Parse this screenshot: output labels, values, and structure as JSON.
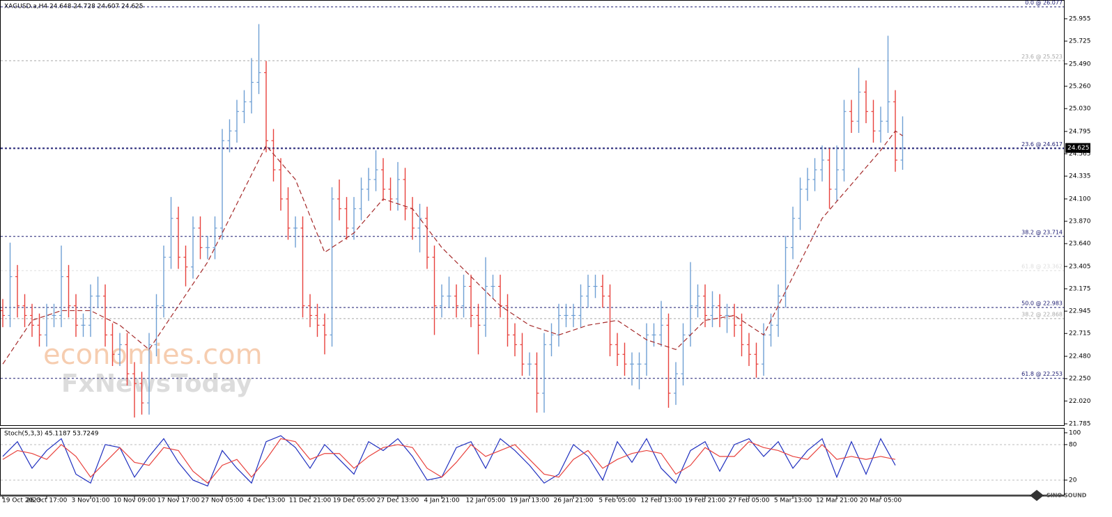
{
  "chart_data": {
    "type": "ohlc",
    "title": "XAGUSD.a,H4  24.648 24.728 24.607 24.625",
    "categories": [
      "19 Oct 2023",
      null,
      null,
      null,
      null,
      null,
      "26 Oct 17:00",
      null,
      null,
      null,
      null,
      null,
      "3 Nov 01:00",
      null,
      null,
      null,
      null,
      null,
      "10 Nov 09:00",
      null,
      null,
      null,
      null,
      null,
      "17 Nov 17:00",
      null,
      null,
      null,
      null,
      null,
      "27 Nov 05:00",
      null,
      null,
      null,
      null,
      null,
      "4 Dec 13:00",
      null,
      null,
      null,
      null,
      null,
      "11 Dec 21:00",
      null,
      null,
      null,
      null,
      null,
      "19 Dec 05:00",
      null,
      null,
      null,
      null,
      null,
      "27 Dec 13:00",
      null,
      null,
      null,
      null,
      null,
      "4 Jan 21:00",
      null,
      null,
      null,
      null,
      null,
      "12 Jan 05:00",
      null,
      null,
      null,
      null,
      null,
      "19 Jan 13:00",
      null,
      null,
      null,
      null,
      null,
      "26 Jan 21:00",
      null,
      null,
      null,
      null,
      null,
      "5 Feb 05:00",
      null,
      null,
      null,
      null,
      null,
      "12 Feb 13:00",
      null,
      null,
      null,
      null,
      null,
      "19 Feb 21:00",
      null,
      null,
      null,
      null,
      null,
      "27 Feb 05:00",
      null,
      null,
      null,
      null,
      null,
      "5 Mar 13:00",
      null,
      null,
      null,
      null,
      null,
      "12 Mar 21:00",
      null,
      null,
      null,
      null,
      null,
      "20 Mar 05:00",
      null,
      null,
      null
    ],
    "open": [
      22.95,
      22.9,
      23.3,
      23.0,
      22.9,
      22.8,
      22.7,
      22.9,
      22.9,
      23.3,
      23.0,
      22.8,
      22.8,
      23.1,
      23.1,
      22.7,
      22.5,
      22.6,
      22.3,
      22.2,
      22.0,
      22.6,
      23.0,
      23.5,
      23.9,
      23.5,
      23.4,
      23.8,
      23.6,
      23.6,
      23.8,
      24.7,
      24.8,
      25.0,
      25.1,
      25.3,
      25.4,
      24.7,
      24.4,
      24.1,
      23.8,
      23.8,
      23.0,
      22.9,
      22.8,
      22.7,
      24.1,
      24.0,
      23.8,
      24.0,
      24.2,
      24.3,
      24.4,
      24.2,
      24.1,
      24.3,
      24.0,
      23.8,
      23.9,
      23.5,
      23.0,
      23.1,
      23.1,
      23.0,
      23.2,
      22.9,
      22.8,
      23.2,
      23.2,
      23.0,
      22.7,
      22.6,
      22.4,
      22.4,
      22.1,
      22.6,
      22.7,
      22.9,
      22.9,
      22.9,
      23.1,
      23.2,
      23.2,
      23.1,
      22.6,
      22.5,
      22.4,
      22.4,
      22.4,
      22.7,
      22.7,
      22.8,
      22.1,
      22.3,
      22.7,
      23.0,
      23.1,
      22.9,
      23.0,
      22.9,
      22.9,
      22.8,
      22.6,
      22.5,
      22.4,
      22.7,
      22.8,
      23.1,
      23.6,
      23.9,
      24.2,
      24.3,
      24.4,
      24.5,
      24.2,
      24.4,
      25.0,
      24.9,
      25.2,
      25.0,
      24.8,
      24.9,
      25.1,
      24.5
    ],
    "high": [
      23.07,
      23.65,
      23.42,
      23.12,
      23.02,
      22.92,
      23.02,
      23.02,
      23.62,
      23.42,
      23.12,
      22.92,
      23.22,
      23.3,
      23.22,
      22.82,
      22.72,
      22.72,
      22.42,
      22.32,
      22.72,
      23.12,
      23.62,
      24.12,
      24.02,
      23.62,
      23.92,
      23.92,
      23.72,
      23.92,
      24.82,
      24.92,
      25.12,
      25.22,
      25.55,
      25.9,
      25.52,
      24.82,
      24.52,
      24.22,
      23.92,
      23.92,
      23.12,
      23.02,
      22.92,
      24.22,
      24.3,
      24.12,
      24.12,
      24.32,
      24.42,
      24.6,
      24.52,
      24.32,
      24.48,
      24.42,
      24.12,
      24.05,
      24.02,
      23.62,
      23.22,
      23.3,
      23.22,
      23.32,
      23.32,
      23.02,
      23.5,
      23.32,
      23.32,
      23.12,
      22.82,
      22.72,
      22.52,
      22.52,
      22.72,
      22.82,
      23.02,
      23.02,
      23.02,
      23.22,
      23.32,
      23.32,
      23.32,
      23.22,
      22.72,
      22.62,
      22.52,
      22.52,
      22.82,
      22.82,
      23.05,
      22.92,
      22.42,
      22.82,
      23.45,
      23.22,
      23.22,
      23.15,
      23.12,
      23.02,
      23.02,
      22.92,
      22.72,
      22.62,
      22.82,
      22.92,
      23.22,
      23.72,
      24.02,
      24.32,
      24.42,
      24.52,
      24.65,
      24.62,
      24.65,
      25.12,
      25.12,
      25.45,
      25.32,
      25.12,
      25.05,
      25.78,
      25.22,
      24.95
    ],
    "low": [
      22.78,
      22.78,
      22.88,
      22.78,
      22.68,
      22.58,
      22.58,
      22.78,
      22.78,
      22.88,
      22.68,
      22.68,
      22.68,
      22.98,
      22.58,
      22.38,
      22.38,
      22.18,
      21.85,
      21.88,
      21.88,
      22.48,
      22.88,
      23.38,
      23.38,
      23.2,
      23.28,
      23.48,
      23.48,
      23.48,
      23.68,
      24.58,
      24.68,
      24.88,
      24.98,
      25.18,
      24.58,
      24.28,
      23.98,
      23.68,
      23.6,
      22.88,
      22.78,
      22.68,
      22.5,
      22.58,
      23.88,
      23.68,
      23.68,
      23.88,
      24.08,
      24.18,
      24.08,
      23.98,
      23.98,
      23.88,
      23.68,
      23.55,
      23.38,
      22.7,
      22.88,
      22.98,
      22.88,
      22.88,
      22.78,
      22.5,
      22.68,
      23.08,
      22.88,
      22.58,
      22.48,
      22.28,
      22.28,
      21.9,
      21.9,
      22.48,
      22.58,
      22.78,
      22.78,
      22.78,
      22.98,
      23.08,
      22.98,
      22.48,
      22.38,
      22.28,
      22.18,
      22.14,
      22.28,
      22.58,
      22.58,
      21.95,
      21.98,
      22.18,
      22.58,
      22.88,
      22.78,
      22.78,
      22.78,
      22.72,
      22.68,
      22.48,
      22.38,
      22.26,
      22.28,
      22.58,
      22.68,
      22.98,
      23.48,
      23.78,
      24.08,
      24.18,
      24.28,
      24.0,
      24.08,
      24.28,
      24.78,
      24.78,
      24.88,
      24.68,
      24.68,
      24.78,
      24.38,
      24.4
    ],
    "close": [
      22.9,
      23.3,
      23.0,
      22.9,
      22.8,
      22.7,
      22.9,
      22.9,
      23.3,
      23.0,
      22.8,
      22.8,
      23.1,
      23.1,
      22.7,
      22.5,
      22.6,
      22.3,
      22.2,
      22.0,
      22.6,
      23.0,
      23.5,
      23.9,
      23.5,
      23.4,
      23.8,
      23.6,
      23.6,
      23.8,
      24.7,
      24.8,
      25.0,
      25.1,
      25.3,
      25.4,
      24.7,
      24.4,
      24.1,
      23.8,
      23.8,
      23.0,
      22.9,
      22.8,
      22.7,
      24.1,
      24.0,
      23.8,
      24.0,
      24.2,
      24.3,
      24.4,
      24.2,
      24.1,
      24.3,
      24.0,
      23.8,
      23.9,
      23.5,
      23.0,
      23.1,
      23.1,
      23.0,
      23.2,
      22.9,
      22.8,
      23.2,
      23.2,
      23.0,
      22.7,
      22.6,
      22.4,
      22.4,
      22.1,
      22.6,
      22.7,
      22.9,
      22.9,
      22.9,
      23.1,
      23.2,
      23.2,
      23.1,
      22.6,
      22.5,
      22.4,
      22.4,
      22.4,
      22.7,
      22.7,
      22.8,
      22.1,
      22.3,
      22.7,
      23.0,
      23.1,
      22.9,
      23.0,
      22.9,
      22.9,
      22.8,
      22.6,
      22.5,
      22.4,
      22.7,
      22.8,
      23.1,
      23.6,
      23.9,
      24.2,
      24.3,
      24.4,
      24.5,
      24.2,
      24.4,
      25.0,
      24.9,
      25.2,
      25.0,
      24.8,
      24.9,
      25.1,
      24.5,
      24.625
    ],
    "colors": {
      "up": "#6e9fd4",
      "down": "#e8413c"
    },
    "ylim": [
      21.764,
      26.141
    ],
    "yticks": [
      21.785,
      {
        "value": 22.02,
        "label": "22.020"
      },
      {
        "value": 22.25,
        "label": "22.250"
      },
      {
        "value": 22.48,
        "label": "22.480"
      },
      22.715,
      22.945,
      23.175,
      23.405,
      {
        "value": 23.64,
        "label": "23.640"
      },
      {
        "value": 23.87,
        "label": "23.870"
      },
      {
        "value": 24.1,
        "label": "24.100"
      },
      24.335,
      24.565,
      24.795,
      {
        "value": 25.03,
        "label": "25.030"
      },
      {
        "value": 25.26,
        "label": "25.260"
      },
      {
        "value": 25.49,
        "label": "25.490"
      },
      25.725,
      25.955
    ],
    "last_price": 24.625,
    "fib_levels": [
      {
        "label": "0.0 @ 26.077",
        "value": 26.077,
        "color": "#1a1a70"
      },
      {
        "label": "23.6 @ 25.523",
        "value": 25.523,
        "color": "#a8a8a8"
      },
      {
        "label": "23.6 @ 24.617",
        "value": 24.617,
        "color": "#1a1a70"
      },
      {
        "label": "38.2 @ 23.714",
        "value": 23.714,
        "color": "#1a1a70"
      },
      {
        "label": "61.8 @ 23.362",
        "value": 23.362,
        "color": "#dedede"
      },
      {
        "label": "50.0 @ 22.983",
        "value": 22.983,
        "color": "#1a1a70"
      },
      {
        "label": "38.2 @ 22.868",
        "value": 22.868,
        "color": "#a8a8a8"
      },
      {
        "label": "61.8 @ 22.253",
        "value": 22.253,
        "color": "#1a1a70"
      }
    ],
    "ma": {
      "color": "#a52a2a",
      "x": [
        0,
        4,
        8,
        12,
        16,
        20,
        24,
        28,
        32,
        36,
        40,
        44,
        48,
        52,
        56,
        60,
        64,
        68,
        72,
        76,
        80,
        84,
        88,
        92,
        96,
        100,
        104,
        108,
        112,
        116,
        120,
        122,
        123
      ],
      "values": [
        22.4,
        22.85,
        22.95,
        22.95,
        22.8,
        22.55,
        23.0,
        23.45,
        24.05,
        24.65,
        24.3,
        23.55,
        23.75,
        24.1,
        24.0,
        23.6,
        23.3,
        23.0,
        22.8,
        22.7,
        22.8,
        22.85,
        22.65,
        22.55,
        22.85,
        22.9,
        22.7,
        23.3,
        23.9,
        24.25,
        24.6,
        24.8,
        24.75
      ]
    },
    "stoch": {
      "title": "Stoch(5,3,3) 45.1187 53.7249",
      "ylim": [
        -5.9,
        107
      ],
      "yticks": [
        20,
        80,
        100
      ],
      "levels": [
        20,
        80
      ],
      "x": [
        0,
        2,
        4,
        6,
        8,
        10,
        12,
        14,
        16,
        18,
        20,
        22,
        24,
        26,
        28,
        30,
        32,
        34,
        36,
        38,
        40,
        42,
        44,
        46,
        48,
        50,
        52,
        54,
        56,
        58,
        60,
        62,
        64,
        66,
        68,
        70,
        72,
        74,
        76,
        78,
        80,
        82,
        84,
        86,
        88,
        90,
        92,
        94,
        96,
        98,
        100,
        102,
        104,
        106,
        108,
        110,
        112,
        114,
        116,
        118,
        120,
        122
      ],
      "series": [
        {
          "color": "#1f2fbf",
          "values": [
            60,
            85,
            40,
            70,
            90,
            30,
            15,
            80,
            75,
            25,
            60,
            90,
            50,
            20,
            10,
            70,
            40,
            15,
            85,
            95,
            75,
            40,
            80,
            55,
            30,
            85,
            70,
            90,
            60,
            20,
            25,
            75,
            85,
            40,
            90,
            70,
            45,
            15,
            30,
            80,
            60,
            20,
            85,
            50,
            90,
            40,
            15,
            70,
            85,
            35,
            80,
            90,
            60,
            85,
            40,
            70,
            90,
            25,
            85,
            30,
            90,
            45
          ]
        },
        {
          "color": "#e8413c",
          "values": [
            55,
            70,
            65,
            55,
            80,
            60,
            25,
            50,
            75,
            50,
            45,
            75,
            70,
            35,
            15,
            45,
            55,
            25,
            55,
            90,
            85,
            55,
            65,
            65,
            40,
            60,
            75,
            80,
            75,
            40,
            25,
            50,
            80,
            60,
            70,
            80,
            55,
            30,
            25,
            55,
            70,
            40,
            55,
            65,
            70,
            65,
            30,
            45,
            75,
            60,
            60,
            85,
            75,
            70,
            60,
            55,
            80,
            55,
            60,
            55,
            60,
            55
          ]
        }
      ]
    },
    "watermarks": [
      "economies.com",
      "FxNewsToday"
    ],
    "logo": "SINO SOUND"
  }
}
